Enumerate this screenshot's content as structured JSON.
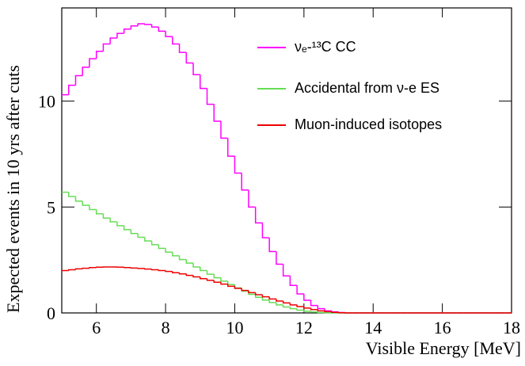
{
  "chart_data": {
    "type": "histogram",
    "xlabel": "Visible Energy [MeV]",
    "ylabel": "Expected events in 10 yrs after cuts",
    "bins": [
      5,
      5.2,
      5.4,
      5.6,
      5.8,
      6,
      6.2,
      6.4,
      6.6,
      6.8,
      7,
      7.2,
      7.4,
      7.6,
      7.8,
      8,
      8.2,
      8.4,
      8.6,
      8.8,
      9,
      9.2,
      9.4,
      9.6,
      9.8,
      10,
      10.2,
      10.4,
      10.6,
      10.8,
      11,
      11.2,
      11.4,
      11.6,
      11.8,
      12,
      12.2,
      12.4,
      12.6,
      12.8,
      13,
      13.2,
      13.4,
      13.6,
      13.8,
      14,
      14.2,
      14.4,
      14.6,
      14.8,
      15,
      15.2,
      15.4,
      15.6,
      15.8,
      16,
      16.2,
      16.4,
      16.6,
      16.8,
      17,
      17.2,
      17.4,
      17.6,
      17.8,
      18
    ],
    "series": [
      {
        "name": "νₑ-¹³C CC",
        "color": "#ff00ff",
        "values": [
          10.3,
          10.75,
          11.2,
          11.6,
          12.0,
          12.35,
          12.7,
          12.98,
          13.2,
          13.4,
          13.55,
          13.65,
          13.62,
          13.5,
          13.3,
          13.05,
          12.7,
          12.3,
          11.8,
          11.25,
          10.6,
          9.85,
          9.05,
          8.25,
          7.4,
          6.6,
          5.8,
          5.0,
          4.25,
          3.55,
          2.9,
          2.3,
          1.75,
          1.3,
          0.9,
          0.6,
          0.35,
          0.2,
          0.1,
          0.05,
          0.02,
          0,
          0,
          0,
          0,
          0,
          0,
          0,
          0,
          0,
          0,
          0,
          0,
          0,
          0,
          0,
          0,
          0,
          0,
          0,
          0,
          0,
          0,
          0,
          0
        ]
      },
      {
        "name": "Accidental from ν-e ES",
        "color": "#66dd55",
        "values": [
          5.7,
          5.5,
          5.28,
          5.08,
          4.88,
          4.68,
          4.48,
          4.3,
          4.12,
          3.93,
          3.75,
          3.57,
          3.4,
          3.22,
          3.05,
          2.87,
          2.7,
          2.52,
          2.35,
          2.17,
          2.0,
          1.83,
          1.66,
          1.5,
          1.34,
          1.18,
          1.03,
          0.88,
          0.74,
          0.61,
          0.49,
          0.38,
          0.28,
          0.2,
          0.13,
          0.08,
          0.04,
          0.02,
          0.01,
          0,
          0,
          0,
          0,
          0,
          0,
          0,
          0,
          0,
          0,
          0,
          0,
          0,
          0,
          0,
          0,
          0,
          0,
          0,
          0,
          0,
          0,
          0,
          0,
          0,
          0
        ]
      },
      {
        "name": "Muon-induced isotopes",
        "color": "#ee0000",
        "values": [
          2.0,
          2.04,
          2.08,
          2.11,
          2.14,
          2.16,
          2.17,
          2.17,
          2.16,
          2.14,
          2.12,
          2.1,
          2.07,
          2.04,
          2.0,
          1.96,
          1.9,
          1.84,
          1.77,
          1.7,
          1.62,
          1.54,
          1.45,
          1.36,
          1.26,
          1.16,
          1.06,
          0.96,
          0.86,
          0.76,
          0.66,
          0.56,
          0.47,
          0.38,
          0.3,
          0.23,
          0.16,
          0.1,
          0.06,
          0.03,
          0.01,
          0,
          0,
          0,
          0,
          0,
          0,
          0,
          0,
          0,
          0,
          0,
          0,
          0,
          0,
          0,
          0,
          0,
          0,
          0,
          0,
          0,
          0,
          0,
          0
        ]
      }
    ],
    "xlim": [
      5,
      18
    ],
    "xticks": [
      6,
      8,
      10,
      12,
      14,
      16,
      18
    ],
    "ylim": [
      0,
      14.4
    ],
    "yticks": [
      0,
      5,
      10
    ],
    "legend": "upper-right"
  }
}
